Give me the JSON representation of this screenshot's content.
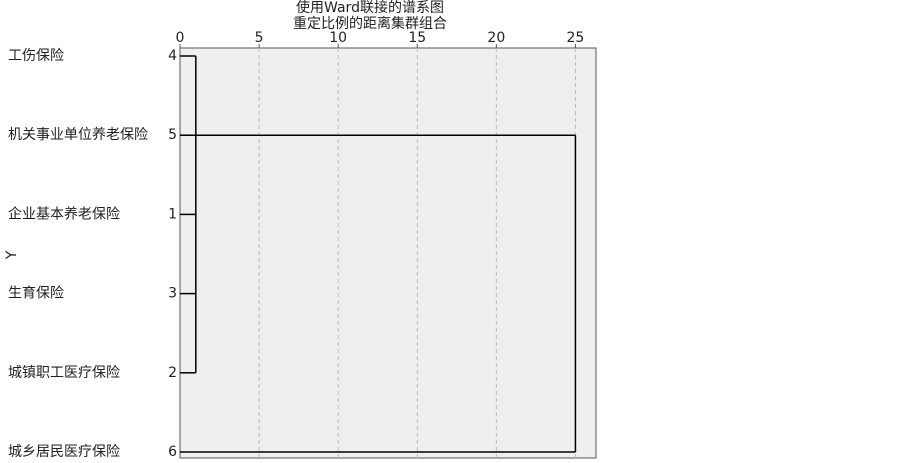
{
  "chart_data": {
    "type": "dendrogram",
    "title": "使用Ward联接的谱系图",
    "subtitle": "重定比例的距离集群组合",
    "y_label": "Y",
    "leaves": [
      "工伤保险",
      "机关事业单位养老保险",
      "企业基本养老保险",
      "生育保险",
      "城镇职工医疗保险",
      "城乡居民医疗保险"
    ],
    "leaf_ids": [
      "4",
      "5",
      "1",
      "3",
      "2",
      "6"
    ],
    "merges": [
      {
        "members": [
          0,
          1,
          2,
          3,
          4
        ],
        "height": 1
      },
      {
        "members": [
          1,
          5
        ],
        "height": 25
      }
    ],
    "xlim": [
      0,
      26.3
    ],
    "xticks": [
      0,
      5,
      10,
      15,
      20,
      25
    ],
    "grid": true,
    "color": "#000000"
  }
}
